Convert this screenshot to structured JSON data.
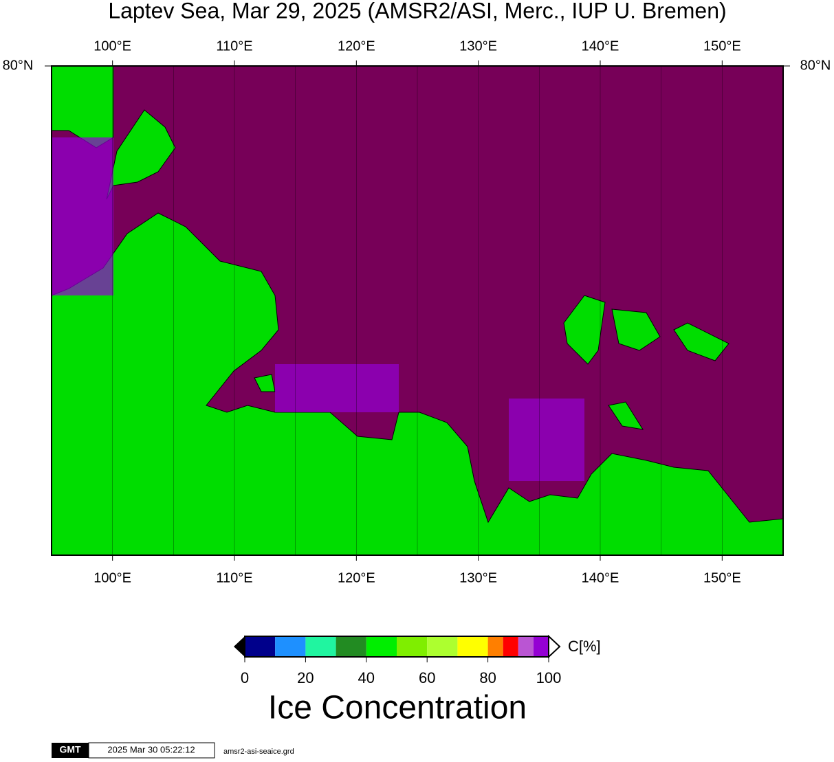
{
  "title": "Laptev Sea, Mar 29, 2025 (AMSR2/ASI, Merc., IUP U. Bremen)",
  "map": {
    "lon_range": [
      95,
      155
    ],
    "meridian_step": 5,
    "lon_labels": [
      {
        "value": 100,
        "label": "100°E"
      },
      {
        "value": 110,
        "label": "110°E"
      },
      {
        "value": 120,
        "label": "120°E"
      },
      {
        "value": 130,
        "label": "130°E"
      },
      {
        "value": 140,
        "label": "140°E"
      },
      {
        "value": 150,
        "label": "150°E"
      }
    ],
    "lat_label": "80°N",
    "ocean_color": "#770058",
    "land_color": "#00dd00"
  },
  "colorbar": {
    "range": [
      0,
      100
    ],
    "bins": [
      0,
      10,
      20,
      30,
      40,
      50,
      60,
      70,
      80,
      85,
      90,
      95,
      100
    ],
    "colors": [
      "#00008b",
      "#1e90ff",
      "#20f5a0",
      "#228b22",
      "#00ee00",
      "#7fee00",
      "#adff2f",
      "#ffff00",
      "#ff7f00",
      "#ff0000",
      "#ba55d3",
      "#9400d3"
    ],
    "ticks": [
      0,
      20,
      40,
      60,
      80,
      100
    ],
    "unit": "C[%]",
    "title": "Ice Concentration"
  },
  "footer": {
    "logo": "GMT",
    "timestamp": "2025 Mar 30 05:22:12",
    "file": "amsr2-asi-seaice.grd"
  }
}
